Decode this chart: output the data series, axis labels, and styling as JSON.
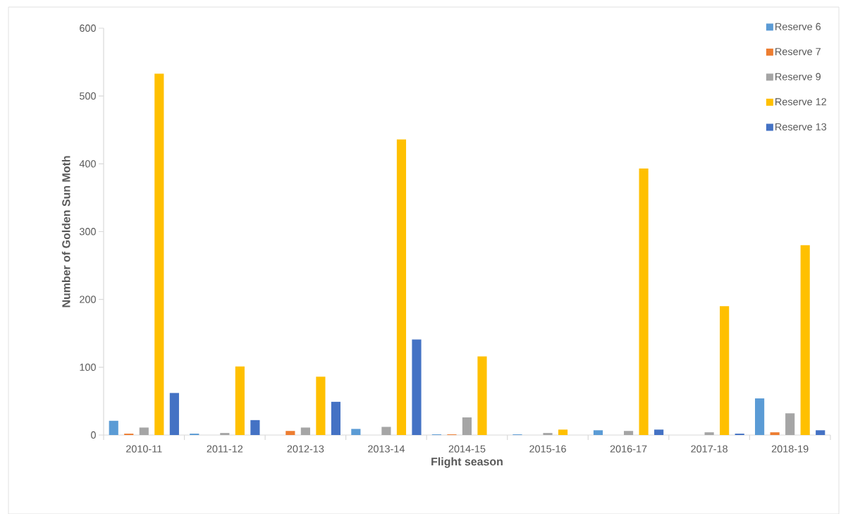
{
  "chart_data": {
    "type": "bar",
    "xlabel": "Flight season",
    "ylabel": "Number of Golden Sun Moth",
    "categories": [
      "2010-11",
      "2011-12",
      "2012-13",
      "2013-14",
      "2014-15",
      "2015-16",
      "2016-17",
      "2017-18",
      "2018-19"
    ],
    "series": [
      {
        "name": "Reserve 6",
        "color": "#5b9bd5",
        "values": [
          21,
          2,
          0,
          9,
          1,
          1,
          7,
          0,
          54
        ]
      },
      {
        "name": "Reserve 7",
        "color": "#ed7d31",
        "values": [
          2,
          0,
          6,
          0,
          1,
          0,
          0,
          0,
          4
        ]
      },
      {
        "name": "Reserve 9",
        "color": "#a5a5a5",
        "values": [
          11,
          3,
          11,
          12,
          26,
          3,
          6,
          4,
          32
        ]
      },
      {
        "name": "Reserve 12",
        "color": "#ffc000",
        "values": [
          533,
          101,
          86,
          436,
          116,
          8,
          393,
          190,
          280
        ]
      },
      {
        "name": "Reserve 13",
        "color": "#4472c4",
        "values": [
          62,
          22,
          49,
          141,
          0,
          0,
          8,
          2,
          7
        ]
      }
    ],
    "ylim": [
      0,
      600
    ],
    "yticks": [
      0,
      100,
      200,
      300,
      400,
      500,
      600
    ],
    "legend": "top right"
  }
}
